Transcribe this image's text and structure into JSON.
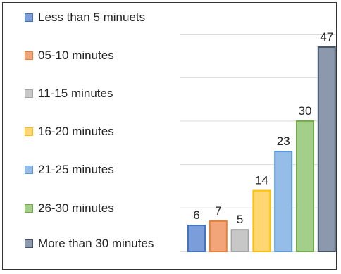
{
  "chart_data": {
    "type": "bar",
    "categories": [
      "Less than 5 minuets",
      "05-10 minutes",
      "11-15 minutes",
      "16-20 minutes",
      "21-25 minutes",
      "26-30 minutes",
      "More than 30 minutes"
    ],
    "values": [
      6,
      7,
      5,
      14,
      23,
      30,
      47
    ],
    "colors": [
      "#4472c4",
      "#ed7d31",
      "#a5a5a5",
      "#ffc000",
      "#5b9bd5",
      "#70ad47",
      "#44546a"
    ],
    "fill_colors": [
      "#7b9edb",
      "#f3a57a",
      "#c7c7c7",
      "#ffd772",
      "#95bde7",
      "#a3cf8a",
      "#8c98ac"
    ],
    "ylim": [
      0,
      50
    ],
    "grid": true,
    "legend_position": "left",
    "data_labels": true
  }
}
